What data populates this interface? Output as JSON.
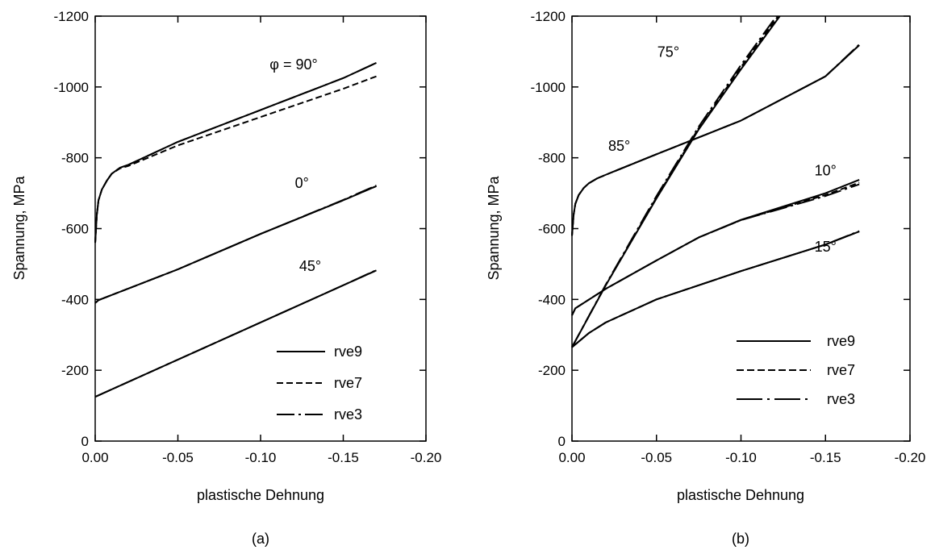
{
  "chart_data": [
    {
      "type": "line",
      "caption": "(a)",
      "xlabel": "plastische Dehnung",
      "ylabel": "Spannung, MPa",
      "xlim": [
        0,
        -0.2
      ],
      "ylim": [
        0,
        -1200
      ],
      "xticks": [
        0,
        -0.05,
        -0.1,
        -0.15,
        -0.2
      ],
      "xtick_labels": [
        "0.00",
        "-0.05",
        "-0.10",
        "-0.15",
        "-0.20"
      ],
      "yticks": [
        0,
        -200,
        -400,
        -600,
        -800,
        -1000,
        -1200
      ],
      "ytick_labels": [
        "0",
        "-200",
        "-400",
        "-600",
        "-800",
        "-1000",
        "-1200"
      ],
      "legend": {
        "placement": "bottom-right",
        "entries": [
          {
            "label": "rve9",
            "style": "solid"
          },
          {
            "label": "rve7",
            "style": "dashed"
          },
          {
            "label": "rve3",
            "style": "dashdot"
          }
        ]
      },
      "annotations": [
        {
          "text": "φ = 90°",
          "x": -0.12,
          "y": -1050
        },
        {
          "text": "0°",
          "x": -0.125,
          "y": -715
        },
        {
          "text": "45°",
          "x": -0.13,
          "y": -480
        }
      ],
      "series": [
        {
          "group": "90°",
          "style": "solid",
          "points": [
            [
              0,
              -560
            ],
            [
              -0.001,
              -640
            ],
            [
              -0.002,
              -680
            ],
            [
              -0.004,
              -710
            ],
            [
              -0.007,
              -735
            ],
            [
              -0.01,
              -755
            ],
            [
              -0.015,
              -772
            ],
            [
              -0.02,
              -780
            ],
            [
              -0.05,
              -845
            ],
            [
              -0.1,
              -935
            ],
            [
              -0.15,
              -1025
            ],
            [
              -0.17,
              -1068
            ]
          ]
        },
        {
          "group": "90°",
          "style": "dashed",
          "points": [
            [
              0,
              -560
            ],
            [
              -0.001,
              -640
            ],
            [
              -0.002,
              -680
            ],
            [
              -0.004,
              -710
            ],
            [
              -0.007,
              -735
            ],
            [
              -0.01,
              -755
            ],
            [
              -0.015,
              -770
            ],
            [
              -0.02,
              -777
            ],
            [
              -0.05,
              -835
            ],
            [
              -0.1,
              -915
            ],
            [
              -0.15,
              -995
            ],
            [
              -0.17,
              -1030
            ]
          ]
        },
        {
          "group": "90°",
          "style": "dashdot",
          "points": [
            [
              0,
              -560
            ],
            [
              -0.001,
              -640
            ],
            [
              -0.002,
              -680
            ],
            [
              -0.004,
              -710
            ],
            [
              -0.007,
              -735
            ],
            [
              -0.01,
              -755
            ],
            [
              -0.015,
              -772
            ],
            [
              -0.02,
              -780
            ],
            [
              -0.05,
              -845
            ],
            [
              -0.1,
              -935
            ],
            [
              -0.15,
              -1025
            ],
            [
              -0.17,
              -1068
            ]
          ]
        },
        {
          "group": "0°",
          "style": "solid",
          "points": [
            [
              0,
              -390
            ],
            [
              -0.002,
              -398
            ],
            [
              -0.05,
              -485
            ],
            [
              -0.1,
              -585
            ],
            [
              -0.15,
              -680
            ],
            [
              -0.17,
              -720
            ]
          ]
        },
        {
          "group": "0°",
          "style": "dashed",
          "points": [
            [
              0,
              -390
            ],
            [
              -0.002,
              -398
            ],
            [
              -0.05,
              -485
            ],
            [
              -0.1,
              -585
            ],
            [
              -0.15,
              -680
            ],
            [
              -0.17,
              -720
            ]
          ]
        },
        {
          "group": "0°",
          "style": "dashdot",
          "points": [
            [
              0,
              -390
            ],
            [
              -0.002,
              -398
            ],
            [
              -0.05,
              -485
            ],
            [
              -0.1,
              -585
            ],
            [
              -0.15,
              -681
            ],
            [
              -0.17,
              -722
            ]
          ]
        },
        {
          "group": "45°",
          "style": "solid",
          "points": [
            [
              0,
              -125
            ],
            [
              -0.05,
              -230
            ],
            [
              -0.1,
              -335
            ],
            [
              -0.15,
              -440
            ],
            [
              -0.17,
              -482
            ]
          ]
        },
        {
          "group": "45°",
          "style": "dashed",
          "points": [
            [
              0,
              -125
            ],
            [
              -0.05,
              -230
            ],
            [
              -0.1,
              -335
            ],
            [
              -0.15,
              -440
            ],
            [
              -0.17,
              -482
            ]
          ]
        },
        {
          "group": "45°",
          "style": "dashdot",
          "points": [
            [
              0,
              -125
            ],
            [
              -0.05,
              -230
            ],
            [
              -0.1,
              -335
            ],
            [
              -0.15,
              -440
            ],
            [
              -0.17,
              -483
            ]
          ]
        }
      ]
    },
    {
      "type": "line",
      "caption": "(b)",
      "xlabel": "plastische Dehnung",
      "ylabel": "Spannung, MPa",
      "xlim": [
        0,
        -0.2
      ],
      "ylim": [
        0,
        -1200
      ],
      "xticks": [
        0,
        -0.05,
        -0.1,
        -0.15,
        -0.2
      ],
      "xtick_labels": [
        "0.00",
        "-0.05",
        "-0.10",
        "-0.15",
        "-0.20"
      ],
      "yticks": [
        0,
        -200,
        -400,
        -600,
        -800,
        -1000,
        -1200
      ],
      "ytick_labels": [
        "0",
        "-200",
        "-400",
        "-600",
        "-800",
        "-1000",
        "-1200"
      ],
      "legend": {
        "placement": "bottom-right",
        "entries": [
          {
            "label": "rve9",
            "style": "solid"
          },
          {
            "label": "rve7",
            "style": "dashed"
          },
          {
            "label": "rve3",
            "style": "dashdot"
          }
        ]
      },
      "annotations": [
        {
          "text": "75°",
          "x": -0.057,
          "y": -1085
        },
        {
          "text": "85°",
          "x": -0.028,
          "y": -820
        },
        {
          "text": "10°",
          "x": -0.15,
          "y": -750
        },
        {
          "text": "15°",
          "x": -0.15,
          "y": -535
        }
      ],
      "series": [
        {
          "group": "85°",
          "style": "solid",
          "points": [
            [
              0,
              -580
            ],
            [
              -0.001,
              -640
            ],
            [
              -0.002,
              -670
            ],
            [
              -0.004,
              -695
            ],
            [
              -0.007,
              -715
            ],
            [
              -0.01,
              -728
            ],
            [
              -0.015,
              -742
            ],
            [
              -0.02,
              -752
            ],
            [
              -0.05,
              -810
            ],
            [
              -0.1,
              -905
            ],
            [
              -0.15,
              -1030
            ],
            [
              -0.17,
              -1118
            ]
          ]
        },
        {
          "group": "85°",
          "style": "dashed",
          "points": [
            [
              0,
              -580
            ],
            [
              -0.001,
              -640
            ],
            [
              -0.002,
              -670
            ],
            [
              -0.004,
              -695
            ],
            [
              -0.007,
              -715
            ],
            [
              -0.01,
              -728
            ],
            [
              -0.015,
              -742
            ],
            [
              -0.02,
              -752
            ],
            [
              -0.05,
              -810
            ],
            [
              -0.1,
              -905
            ],
            [
              -0.15,
              -1030
            ],
            [
              -0.17,
              -1118
            ]
          ]
        },
        {
          "group": "85°",
          "style": "dashdot",
          "points": [
            [
              0,
              -580
            ],
            [
              -0.001,
              -640
            ],
            [
              -0.002,
              -670
            ],
            [
              -0.004,
              -695
            ],
            [
              -0.007,
              -715
            ],
            [
              -0.01,
              -728
            ],
            [
              -0.015,
              -742
            ],
            [
              -0.02,
              -752
            ],
            [
              -0.05,
              -810
            ],
            [
              -0.1,
              -905
            ],
            [
              -0.15,
              -1030
            ],
            [
              -0.17,
              -1120
            ]
          ]
        },
        {
          "group": "75°",
          "style": "solid",
          "points": [
            [
              0,
              -265
            ],
            [
              -0.02,
              -440
            ],
            [
              -0.05,
              -685
            ],
            [
              -0.075,
              -880
            ],
            [
              -0.1,
              -1050
            ],
            [
              -0.123,
              -1200
            ]
          ]
        },
        {
          "group": "75°",
          "style": "dashed",
          "points": [
            [
              0,
              -265
            ],
            [
              -0.02,
              -440
            ],
            [
              -0.05,
              -688
            ],
            [
              -0.075,
              -884
            ],
            [
              -0.1,
              -1056
            ],
            [
              -0.122,
              -1200
            ]
          ]
        },
        {
          "group": "75°",
          "style": "dashdot",
          "points": [
            [
              0,
              -265
            ],
            [
              -0.02,
              -442
            ],
            [
              -0.05,
              -692
            ],
            [
              -0.075,
              -888
            ],
            [
              -0.1,
              -1062
            ],
            [
              -0.121,
              -1200
            ]
          ]
        },
        {
          "group": "10°",
          "style": "solid",
          "points": [
            [
              0,
              -355
            ],
            [
              -0.002,
              -375
            ],
            [
              -0.02,
              -430
            ],
            [
              -0.05,
              -510
            ],
            [
              -0.075,
              -575
            ],
            [
              -0.1,
              -625
            ],
            [
              -0.15,
              -700
            ],
            [
              -0.17,
              -738
            ]
          ]
        },
        {
          "group": "10°",
          "style": "dashed",
          "points": [
            [
              0,
              -355
            ],
            [
              -0.002,
              -375
            ],
            [
              -0.02,
              -430
            ],
            [
              -0.05,
              -510
            ],
            [
              -0.075,
              -575
            ],
            [
              -0.1,
              -624
            ],
            [
              -0.15,
              -695
            ],
            [
              -0.17,
              -730
            ]
          ]
        },
        {
          "group": "10°",
          "style": "dashdot",
          "points": [
            [
              0,
              -355
            ],
            [
              -0.002,
              -375
            ],
            [
              -0.02,
              -430
            ],
            [
              -0.05,
              -510
            ],
            [
              -0.075,
              -575
            ],
            [
              -0.1,
              -624
            ],
            [
              -0.15,
              -692
            ],
            [
              -0.17,
              -725
            ]
          ]
        },
        {
          "group": "15°",
          "style": "solid",
          "points": [
            [
              0,
              -265
            ],
            [
              -0.01,
              -305
            ],
            [
              -0.02,
              -335
            ],
            [
              -0.05,
              -400
            ],
            [
              -0.1,
              -480
            ],
            [
              -0.15,
              -555
            ],
            [
              -0.17,
              -592
            ]
          ]
        },
        {
          "group": "15°",
          "style": "dashed",
          "points": [
            [
              0,
              -265
            ],
            [
              -0.01,
              -305
            ],
            [
              -0.02,
              -335
            ],
            [
              -0.05,
              -400
            ],
            [
              -0.1,
              -480
            ],
            [
              -0.15,
              -555
            ],
            [
              -0.17,
              -592
            ]
          ]
        },
        {
          "group": "15°",
          "style": "dashdot",
          "points": [
            [
              0,
              -265
            ],
            [
              -0.01,
              -305
            ],
            [
              -0.02,
              -335
            ],
            [
              -0.05,
              -400
            ],
            [
              -0.1,
              -480
            ],
            [
              -0.15,
              -555
            ],
            [
              -0.17,
              -593
            ]
          ]
        }
      ]
    }
  ]
}
